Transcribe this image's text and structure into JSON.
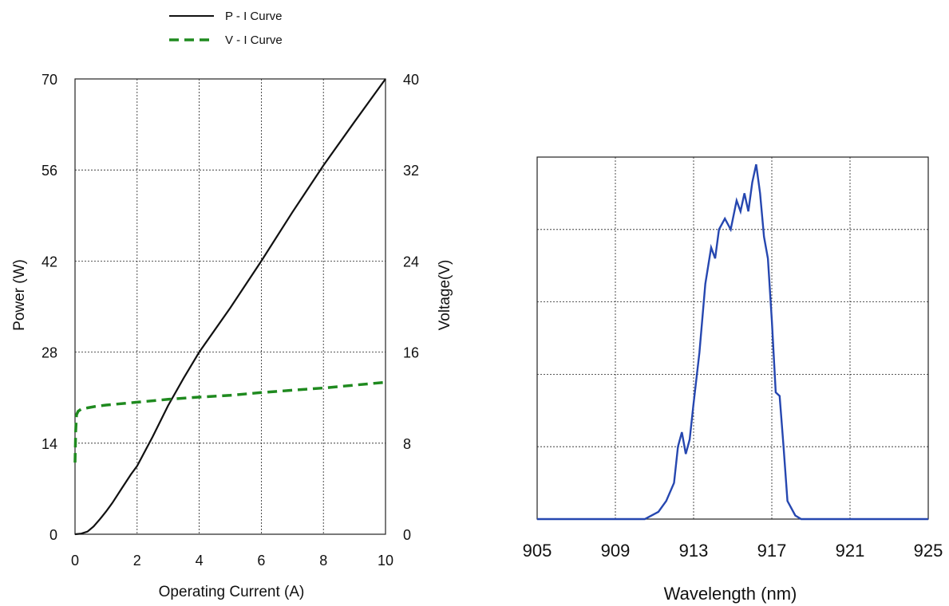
{
  "chart_data": [
    {
      "type": "line",
      "legend": {
        "placement": "top",
        "entries": [
          {
            "label": "P - I Curve",
            "color": "#111111",
            "style": "solid"
          },
          {
            "label": "V - I Curve",
            "color": "#1f8a1f",
            "style": "dashed"
          }
        ]
      },
      "xlabel": "Operating Current (A)",
      "ylabel": "Power (W)",
      "y2label": "Voltage(V)",
      "xlim": [
        0,
        10
      ],
      "ylim": [
        0,
        70
      ],
      "y2lim": [
        0,
        40
      ],
      "xticks": [
        "0",
        "2",
        "4",
        "6",
        "8",
        "10"
      ],
      "yticks": [
        "0",
        "14",
        "28",
        "42",
        "56",
        "70"
      ],
      "y2ticks": [
        "0",
        "8",
        "16",
        "24",
        "32",
        "40"
      ],
      "grid": true,
      "series": [
        {
          "name": "P - I Curve",
          "axis": "left",
          "color": "#111111",
          "x": [
            0,
            0.2,
            0.4,
            0.6,
            0.8,
            1.0,
            1.2,
            1.5,
            1.8,
            2.0,
            2.5,
            3.0,
            3.5,
            4.0,
            5.0,
            6.0,
            7.0,
            8.0,
            9.0,
            10.0
          ],
          "y": [
            0,
            0.1,
            0.4,
            1.2,
            2.3,
            3.5,
            4.8,
            7.0,
            9.2,
            10.5,
            15.0,
            19.8,
            24.0,
            28.0,
            34.8,
            42.0,
            49.5,
            56.7,
            63.4,
            70.0
          ]
        },
        {
          "name": "V - I Curve",
          "axis": "right",
          "color": "#1f8a1f",
          "x": [
            0,
            0.02,
            0.05,
            0.1,
            0.2,
            0.4,
            0.7,
            1.0,
            2.0,
            3.0,
            4.0,
            5.0,
            6.0,
            7.0,
            8.0,
            9.0,
            10.0
          ],
          "y": [
            6.3,
            9.0,
            10.5,
            10.8,
            11.0,
            11.1,
            11.25,
            11.35,
            11.6,
            11.85,
            12.05,
            12.2,
            12.45,
            12.65,
            12.85,
            13.1,
            13.35
          ]
        }
      ]
    },
    {
      "type": "line",
      "xlabel": "Wavelength (nm)",
      "ylabel": "",
      "xlim": [
        905,
        925
      ],
      "ylim": [
        0,
        1
      ],
      "xticks": [
        "905",
        "909",
        "913",
        "917",
        "921",
        "925"
      ],
      "y_gridlines": 4,
      "grid": true,
      "series": [
        {
          "color": "#2647b0",
          "x": [
            905,
            910.5,
            911.2,
            911.6,
            912.0,
            912.2,
            912.4,
            912.6,
            912.8,
            913.0,
            913.3,
            913.6,
            913.9,
            914.1,
            914.3,
            914.6,
            914.9,
            915.2,
            915.4,
            915.6,
            915.8,
            916.0,
            916.2,
            916.4,
            916.6,
            916.8,
            917.0,
            917.2,
            917.4,
            917.6,
            917.8,
            918.2,
            918.5,
            925
          ],
          "y": [
            0,
            0,
            0.02,
            0.05,
            0.1,
            0.2,
            0.24,
            0.18,
            0.22,
            0.32,
            0.46,
            0.65,
            0.75,
            0.72,
            0.8,
            0.83,
            0.8,
            0.88,
            0.85,
            0.9,
            0.85,
            0.93,
            0.98,
            0.9,
            0.78,
            0.72,
            0.55,
            0.35,
            0.34,
            0.2,
            0.05,
            0.01,
            0,
            0
          ]
        }
      ]
    }
  ]
}
